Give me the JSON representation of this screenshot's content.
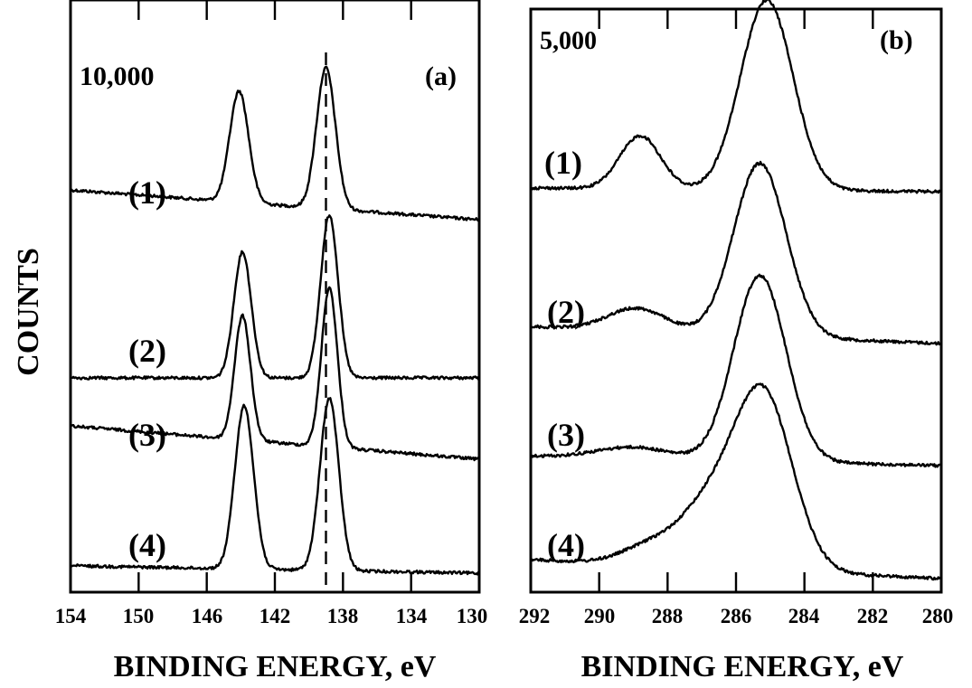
{
  "figure": {
    "ylabel": "COUNTS",
    "panels": [
      {
        "id": "a",
        "panel_label": "(a)",
        "scale_label": "10,000",
        "xlabel": "BINDING ENERGY, eV",
        "x_ticks": [
          "154",
          "150",
          "146",
          "142",
          "138",
          "134",
          "130"
        ],
        "trace_labels": [
          "(1)",
          "(2)",
          "(3)",
          "(4)"
        ]
      },
      {
        "id": "b",
        "panel_label": "(b)",
        "scale_label": "5,000",
        "xlabel": "BINDING ENERGY, eV",
        "x_ticks": [
          "292",
          "290",
          "288",
          "286",
          "284",
          "282",
          "280"
        ],
        "trace_labels": [
          "(1)",
          "(2)",
          "(3)",
          "(4)"
        ]
      }
    ]
  },
  "chart_data": [
    {
      "type": "line",
      "panel": "(a)",
      "xlabel": "BINDING ENERGY, eV",
      "ylabel": "COUNTS",
      "xlim": [
        154,
        130
      ],
      "x_reversed": true,
      "x_ticks": [
        154,
        150,
        146,
        142,
        138,
        134,
        130
      ],
      "y_scale_annotation": "10,000",
      "stacked_offset_traces": true,
      "reference_dashed_vertical_line_x": 139.0,
      "series": [
        {
          "name": "(1)",
          "baseline": 0.16,
          "peaks": [
            {
              "x": 144.1,
              "height": 0.6,
              "fwhm": 1.3
            },
            {
              "x": 139.0,
              "height": 0.76,
              "fwhm": 1.3
            }
          ]
        },
        {
          "name": "(2)",
          "baseline": 0.0,
          "peaks": [
            {
              "x": 143.9,
              "height": 0.68,
              "fwhm": 1.2
            },
            {
              "x": 138.8,
              "height": 0.88,
              "fwhm": 1.2
            }
          ]
        },
        {
          "name": "(3)",
          "baseline": 0.18,
          "peaks": [
            {
              "x": 143.9,
              "height": 0.67,
              "fwhm": 1.1
            },
            {
              "x": 138.8,
              "height": 0.86,
              "fwhm": 1.1
            }
          ]
        },
        {
          "name": "(4)",
          "baseline": 0.04,
          "peaks": [
            {
              "x": 143.8,
              "height": 0.88,
              "fwhm": 1.3
            },
            {
              "x": 138.8,
              "height": 0.93,
              "fwhm": 1.3
            }
          ]
        }
      ]
    },
    {
      "type": "line",
      "panel": "(b)",
      "xlabel": "BINDING ENERGY, eV",
      "ylabel": "COUNTS",
      "xlim": [
        292,
        280
      ],
      "x_reversed": true,
      "x_ticks": [
        292,
        290,
        288,
        286,
        284,
        282,
        280
      ],
      "y_scale_annotation": "5,000",
      "stacked_offset_traces": true,
      "series": [
        {
          "name": "(1)",
          "baseline": 0.02,
          "peaks": [
            {
              "x": 285.1,
              "height": 1.0,
              "fwhm": 1.8
            },
            {
              "x": 288.8,
              "height": 0.28,
              "fwhm": 1.4
            }
          ]
        },
        {
          "name": "(2)",
          "baseline": 0.09,
          "peaks": [
            {
              "x": 285.3,
              "height": 0.91,
              "fwhm": 1.8
            },
            {
              "x": 288.9,
              "height": 0.12,
              "fwhm": 2.0
            }
          ]
        },
        {
          "name": "(3)",
          "baseline": 0.05,
          "peaks": [
            {
              "x": 285.3,
              "height": 0.98,
              "fwhm": 1.8
            },
            {
              "x": 289.0,
              "height": 0.06,
              "fwhm": 2.5
            }
          ]
        },
        {
          "name": "(4)",
          "baseline": 0.1,
          "peaks": [
            {
              "x": 285.2,
              "height": 0.92,
              "fwhm": 2.0
            },
            {
              "x": 286.8,
              "height": 0.3,
              "fwhm": 2.0
            },
            {
              "x": 288.5,
              "height": 0.1,
              "fwhm": 2.0
            }
          ]
        }
      ]
    }
  ]
}
